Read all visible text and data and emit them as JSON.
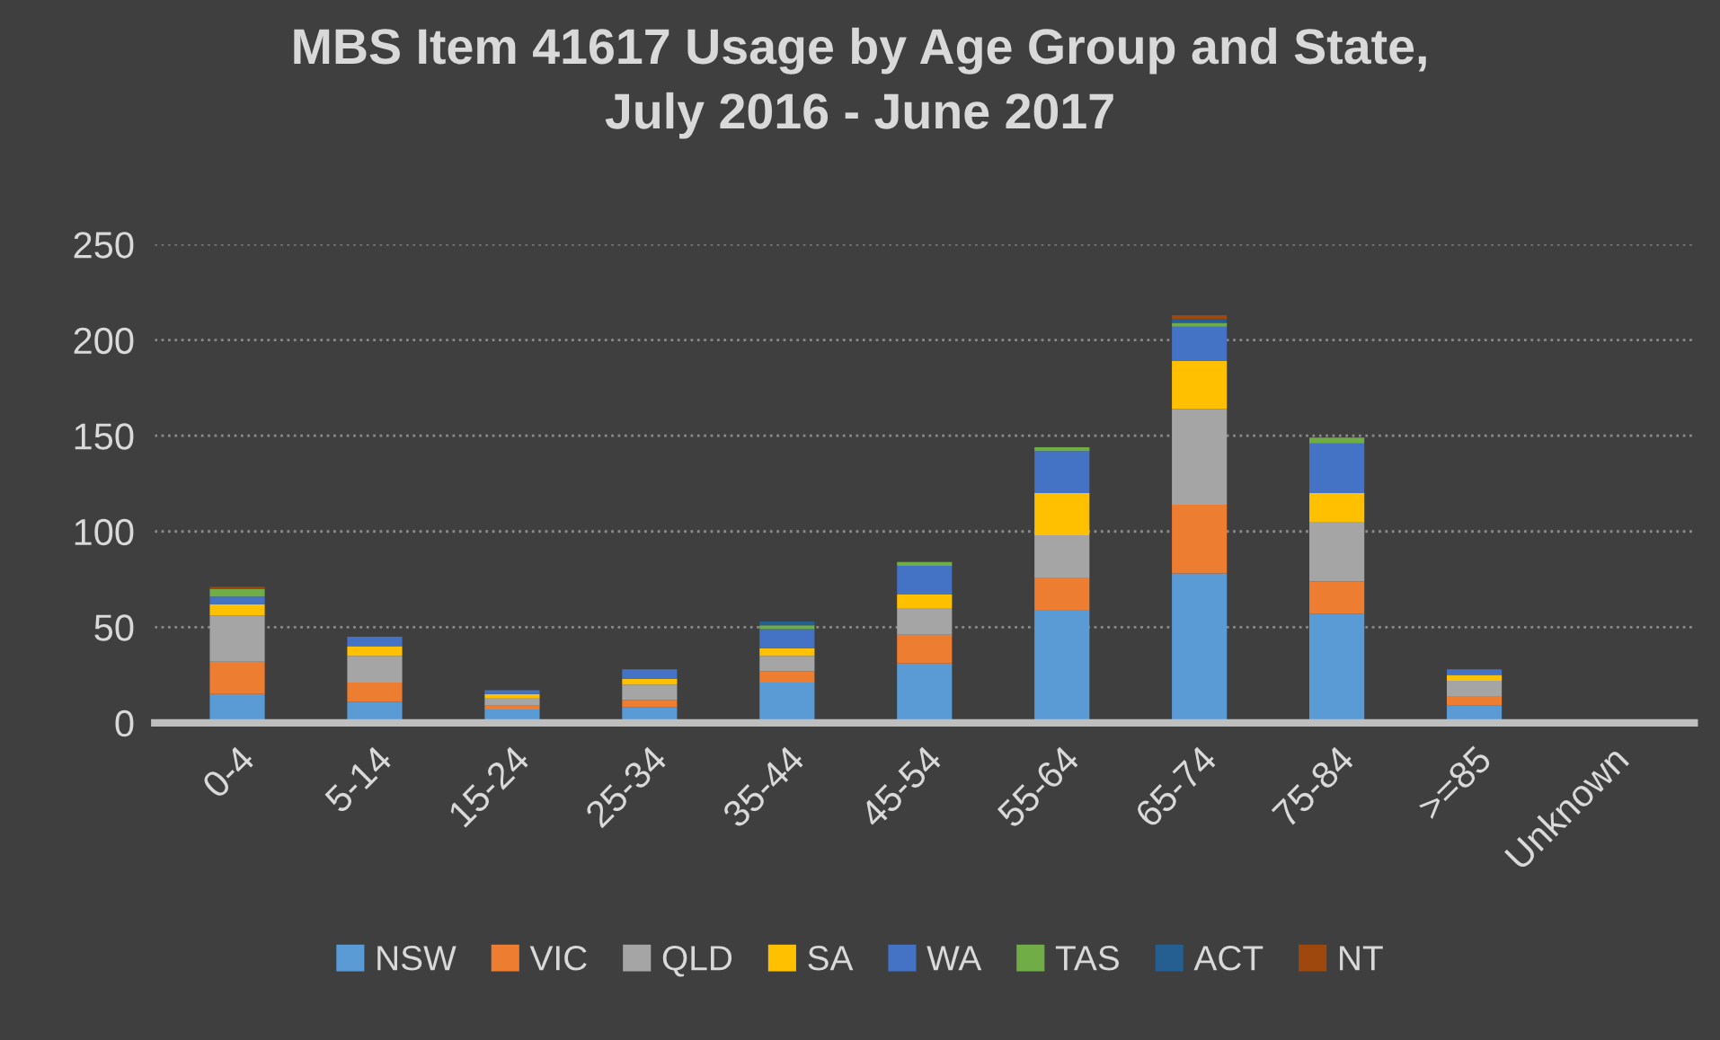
{
  "chart_data": {
    "type": "bar",
    "stacked": true,
    "title": "MBS Item 41617 Usage by Age Group and State,\nJuly 2016 - June 2017",
    "categories": [
      "0-4",
      "5-14",
      "15-24",
      "25-34",
      "35-44",
      "45-54",
      "55-64",
      "65-74",
      "75-84",
      ">=85",
      "Unknown"
    ],
    "series": [
      {
        "name": "NSW",
        "color": "#5b9bd5",
        "values": [
          15,
          11,
          7,
          8,
          21,
          31,
          59,
          78,
          57,
          9,
          0
        ]
      },
      {
        "name": "VIC",
        "color": "#ed7d31",
        "values": [
          17,
          10,
          2,
          4,
          6,
          15,
          17,
          36,
          17,
          5,
          0
        ]
      },
      {
        "name": "QLD",
        "color": "#a5a5a5",
        "values": [
          24,
          14,
          4,
          8,
          8,
          14,
          22,
          50,
          31,
          8,
          0
        ]
      },
      {
        "name": "SA",
        "color": "#ffc000",
        "values": [
          6,
          5,
          2,
          3,
          4,
          7,
          22,
          25,
          15,
          3,
          0
        ]
      },
      {
        "name": "WA",
        "color": "#4472c4",
        "values": [
          4,
          5,
          2,
          5,
          10,
          15,
          22,
          18,
          26,
          3,
          0
        ]
      },
      {
        "name": "TAS",
        "color": "#70ad47",
        "values": [
          4,
          0,
          0,
          0,
          2,
          2,
          2,
          2,
          3,
          0,
          0
        ]
      },
      {
        "name": "ACT",
        "color": "#255e91",
        "values": [
          null,
          0,
          0,
          0,
          2,
          null,
          null,
          2,
          0,
          0,
          0
        ]
      },
      {
        "name": "NT",
        "color": "#9e480e",
        "values": [
          1,
          0,
          0,
          0,
          0,
          0,
          0,
          2,
          0,
          0,
          0
        ]
      }
    ],
    "ylim": [
      0,
      250
    ],
    "yticks": [
      0,
      50,
      100,
      150,
      200,
      250
    ],
    "grid": "y",
    "legend": "bottom"
  }
}
